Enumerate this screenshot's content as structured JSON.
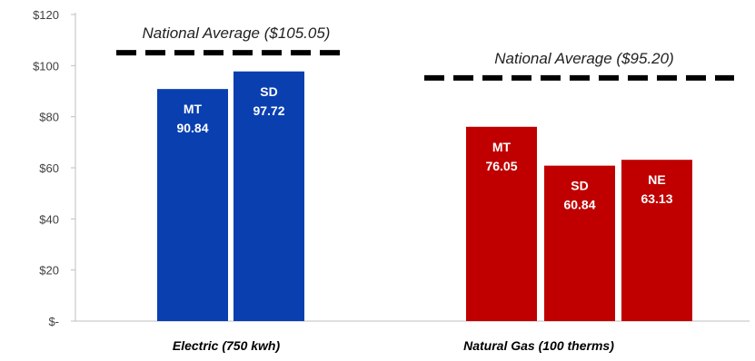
{
  "chart_data": {
    "type": "bar",
    "title": "",
    "xlabel": "",
    "ylabel": "",
    "ylim": [
      0,
      120
    ],
    "y_ticks": [
      {
        "value": 0,
        "label": "$-"
      },
      {
        "value": 20,
        "label": "$20"
      },
      {
        "value": 40,
        "label": "$40"
      },
      {
        "value": 60,
        "label": "$60"
      },
      {
        "value": 80,
        "label": "$80"
      },
      {
        "value": 100,
        "label": "$100"
      },
      {
        "value": 120,
        "label": "$120"
      }
    ],
    "grid": false,
    "legend": "none",
    "groups": [
      {
        "category": "Electric (750 kwh)",
        "color": "#0a3fb0",
        "bars": [
          {
            "state": "MT",
            "value": 90.84,
            "value_label": "90.84"
          },
          {
            "state": "SD",
            "value": 97.72,
            "value_label": "97.72"
          }
        ],
        "national_average": 105.05,
        "national_average_label": "National Average ($105.05)"
      },
      {
        "category": "Natural Gas (100 therms)",
        "color": "#c00000",
        "bars": [
          {
            "state": "MT",
            "value": 76.05,
            "value_label": "76.05"
          },
          {
            "state": "SD",
            "value": 60.84,
            "value_label": "60.84"
          },
          {
            "state": "NE",
            "value": 63.13,
            "value_label": "63.13"
          }
        ],
        "national_average": 95.2,
        "national_average_label": "National Average ($95.20)"
      }
    ]
  }
}
